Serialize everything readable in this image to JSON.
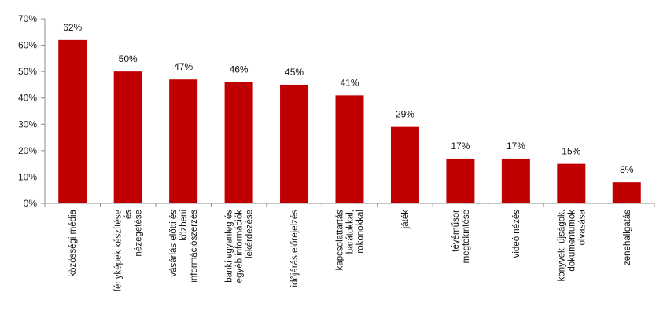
{
  "chart_data": {
    "type": "bar",
    "title": "",
    "xlabel": "",
    "ylabel": "",
    "ylim": [
      0,
      70
    ],
    "yticks": [
      "0%",
      "10%",
      "20%",
      "30%",
      "40%",
      "50%",
      "60%",
      "70%"
    ],
    "grid": false,
    "legend": "none",
    "bar_color": "#c00000",
    "categories": [
      [
        "közösségi média"
      ],
      [
        "fényképek készítése",
        "és",
        "nézegetése"
      ],
      [
        "vásárlás előtti és",
        "közbeni",
        "információszerzés"
      ],
      [
        "banki egyenleg és",
        "egyéb információk",
        "lekérdezése"
      ],
      [
        "időjárás előrejelzés"
      ],
      [
        "kapcsolattartás",
        "barátokkal,",
        "rokonokkal"
      ],
      [
        "játék"
      ],
      [
        "tévéműsor",
        "megtekintése"
      ],
      [
        "videó nézés"
      ],
      [
        "könyvek, újságok,",
        "dokumentumok",
        "olvasása"
      ],
      [
        "zenehallgatás"
      ]
    ],
    "values": [
      62,
      50,
      47,
      46,
      45,
      41,
      29,
      17,
      17,
      15,
      8
    ],
    "data_labels": [
      "62%",
      "50%",
      "47%",
      "46%",
      "45%",
      "41%",
      "29%",
      "17%",
      "17%",
      "15%",
      "8%"
    ]
  }
}
